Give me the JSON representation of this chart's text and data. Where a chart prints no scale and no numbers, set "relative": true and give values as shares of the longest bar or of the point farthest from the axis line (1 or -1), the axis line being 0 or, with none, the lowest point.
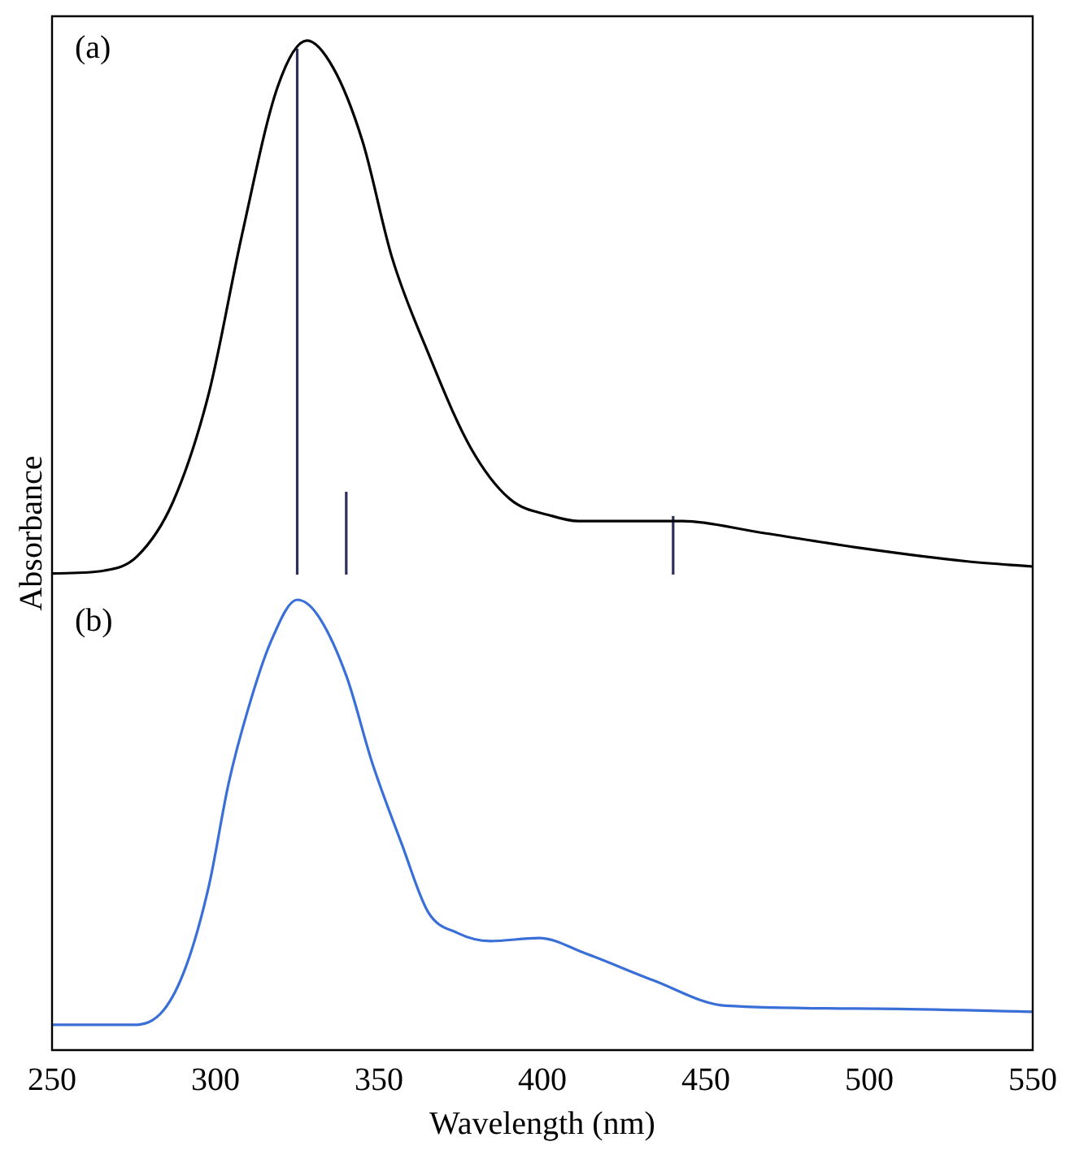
{
  "chart_data": {
    "type": "line",
    "relative": true,
    "xlabel": "Wavelength (nm)",
    "ylabel": "Absorbance",
    "xlim": [
      250,
      550
    ],
    "xticks": [
      250,
      300,
      350,
      400,
      450,
      500,
      550
    ],
    "grid": false,
    "legend": false,
    "marker": "none",
    "annotations": [
      "(a)",
      "(b)"
    ],
    "series": [
      {
        "color": "#000000",
        "x": [
          250,
          266,
          276,
          287,
          298,
          308,
          319,
          328,
          336,
          345,
          354,
          365,
          378,
          390,
          403,
          411,
          443,
          466,
          498,
          530,
          550
        ],
        "values": [
          0.472,
          0.475,
          0.489,
          0.543,
          0.651,
          0.806,
          0.954,
          1.0,
          0.973,
          0.9,
          0.785,
          0.691,
          0.597,
          0.546,
          0.529,
          0.524,
          0.524,
          0.513,
          0.497,
          0.484,
          0.479
        ]
      },
      {
        "color": "#2b2f5a",
        "x": [
          325,
          325
        ],
        "values": [
          0.471,
          0.992
        ]
      },
      {
        "color": "#2b2f5a",
        "x": [
          340,
          340
        ],
        "values": [
          0.471,
          0.553
        ]
      },
      {
        "color": "#2b2f5a",
        "x": [
          440,
          440
        ],
        "values": [
          0.471,
          0.529
        ]
      },
      {
        "color": "#3a6fd8",
        "x": [
          250,
          275,
          284,
          291,
          298,
          304,
          310,
          317,
          325,
          331,
          340,
          348,
          357,
          365,
          374,
          384,
          399,
          413,
          434,
          456,
          503,
          550
        ],
        "values": [
          0.025,
          0.025,
          0.039,
          0.083,
          0.163,
          0.264,
          0.338,
          0.405,
          0.446,
          0.432,
          0.371,
          0.284,
          0.204,
          0.137,
          0.116,
          0.108,
          0.111,
          0.096,
          0.069,
          0.044,
          0.041,
          0.038
        ]
      }
    ]
  }
}
